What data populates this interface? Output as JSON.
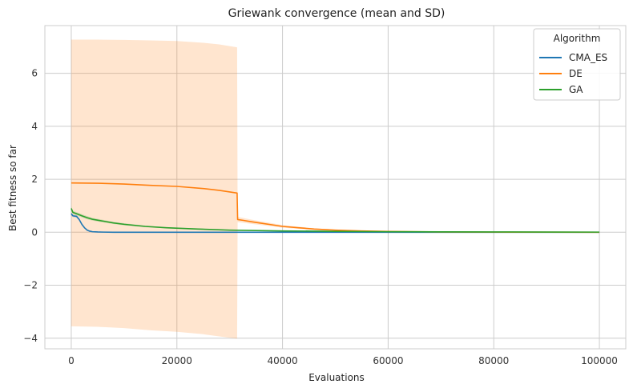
{
  "chart_data": {
    "type": "line",
    "title": "Griewank convergence (mean and SD)",
    "xlabel": "Evaluations",
    "ylabel": "Best fitness so far",
    "xlim": [
      -5000,
      105000
    ],
    "ylim": [
      -4.4,
      7.8
    ],
    "xticks": [
      0,
      20000,
      40000,
      60000,
      80000,
      100000
    ],
    "yticks": [
      -4,
      -2,
      0,
      2,
      4,
      6
    ],
    "x_tick_labels": [
      "0",
      "20000",
      "40000",
      "60000",
      "80000",
      "100000"
    ],
    "y_tick_labels": [
      "−4",
      "−2",
      "0",
      "2",
      "4",
      "6"
    ],
    "grid": true,
    "legend": {
      "title": "Algorithm",
      "placement": "top-right"
    },
    "series": [
      {
        "name": "CMA_ES",
        "color": "#1f77b4",
        "x": [
          0,
          300,
          600,
          1000,
          1500,
          2000,
          2500,
          3000,
          3500,
          4000,
          5000,
          6000,
          8000,
          10000,
          20000,
          40000,
          60000,
          80000,
          100000
        ],
        "y": [
          0.7,
          0.62,
          0.61,
          0.6,
          0.48,
          0.3,
          0.17,
          0.08,
          0.04,
          0.02,
          0.01,
          0.005,
          0.0,
          0.0,
          0.0,
          0.0,
          0.0,
          0.0,
          0.0
        ],
        "lower": [
          0.64,
          0.57,
          0.56,
          0.55,
          0.44,
          0.27,
          0.15,
          0.07,
          0.03,
          0.015,
          0.008,
          0.003,
          0.0,
          0.0,
          0.0,
          0.0,
          0.0,
          0.0,
          0.0
        ],
        "upper": [
          0.76,
          0.67,
          0.66,
          0.65,
          0.52,
          0.33,
          0.19,
          0.09,
          0.05,
          0.025,
          0.012,
          0.007,
          0.0,
          0.0,
          0.0,
          0.0,
          0.0,
          0.0,
          0.0
        ]
      },
      {
        "name": "DE",
        "color": "#ff7f0e",
        "x": [
          0,
          5000,
          10000,
          15000,
          20000,
          25000,
          28000,
          31400,
          31500,
          32500,
          34000,
          36000,
          38000,
          40000,
          43000,
          46000,
          50000,
          55000,
          60000,
          70000,
          80000,
          90000,
          100000
        ],
        "y": [
          1.86,
          1.85,
          1.82,
          1.77,
          1.73,
          1.65,
          1.58,
          1.48,
          0.48,
          0.45,
          0.4,
          0.34,
          0.28,
          0.22,
          0.17,
          0.12,
          0.08,
          0.05,
          0.03,
          0.01,
          0.005,
          0.002,
          0.0
        ],
        "lower": [
          -3.55,
          -3.57,
          -3.62,
          -3.7,
          -3.76,
          -3.85,
          -3.93,
          -4.02,
          0.38,
          0.36,
          0.32,
          0.27,
          0.22,
          0.17,
          0.13,
          0.09,
          0.06,
          0.035,
          0.02,
          0.007,
          0.003,
          0.001,
          0.0
        ],
        "upper": [
          7.27,
          7.27,
          7.26,
          7.24,
          7.22,
          7.15,
          7.09,
          6.98,
          0.58,
          0.54,
          0.48,
          0.41,
          0.34,
          0.27,
          0.21,
          0.15,
          0.1,
          0.065,
          0.04,
          0.013,
          0.007,
          0.003,
          0.0
        ]
      },
      {
        "name": "GA",
        "color": "#2ca02c",
        "x": [
          0,
          300,
          1000,
          2000,
          3000,
          4000,
          6000,
          8000,
          10000,
          14000,
          18000,
          24000,
          30000,
          40000,
          50000,
          60000,
          70000,
          80000,
          90000,
          100000
        ],
        "y": [
          0.9,
          0.75,
          0.7,
          0.62,
          0.55,
          0.49,
          0.42,
          0.35,
          0.3,
          0.22,
          0.17,
          0.12,
          0.08,
          0.05,
          0.035,
          0.02,
          0.015,
          0.01,
          0.008,
          0.005
        ],
        "lower": [
          0.82,
          0.69,
          0.64,
          0.56,
          0.49,
          0.44,
          0.37,
          0.31,
          0.26,
          0.19,
          0.15,
          0.1,
          0.07,
          0.04,
          0.028,
          0.015,
          0.011,
          0.007,
          0.005,
          0.003
        ],
        "upper": [
          0.98,
          0.81,
          0.76,
          0.68,
          0.61,
          0.54,
          0.47,
          0.39,
          0.34,
          0.25,
          0.19,
          0.14,
          0.09,
          0.06,
          0.042,
          0.025,
          0.019,
          0.013,
          0.011,
          0.007
        ]
      }
    ]
  }
}
